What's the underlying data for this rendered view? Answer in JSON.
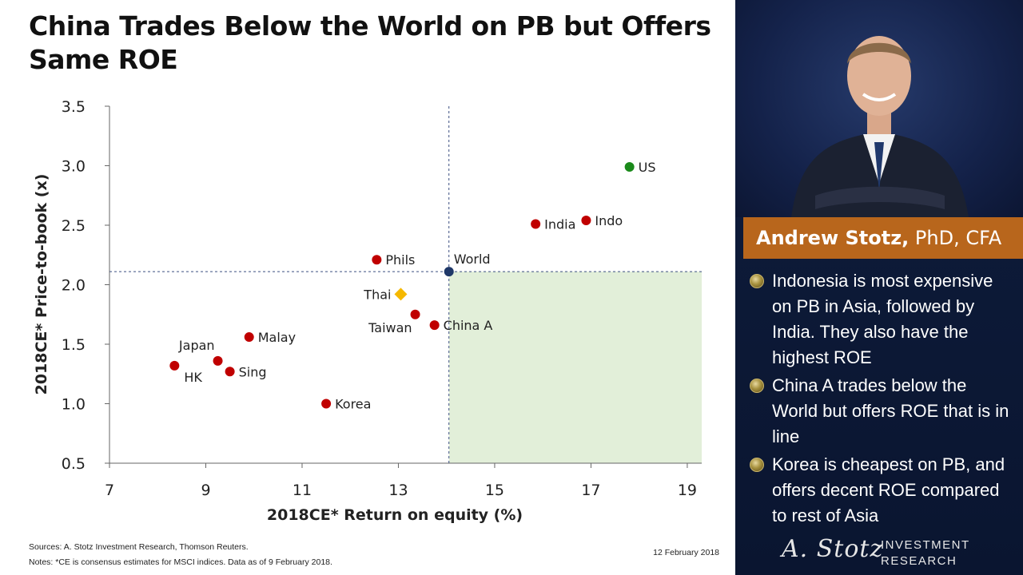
{
  "title": "China Trades Below the World on PB but Offers Same ROE",
  "chart_data": {
    "type": "scatter",
    "xlabel": "2018CE* Return on equity (%)",
    "ylabel": "2018CE* Price-to-book (x)",
    "xlim": [
      7,
      19.3
    ],
    "ylim": [
      0.5,
      3.5
    ],
    "xticks": [
      "7",
      "9",
      "11",
      "13",
      "15",
      "17",
      "19"
    ],
    "yticks": [
      "0.5",
      "1.0",
      "1.5",
      "2.0",
      "2.5",
      "3.0",
      "3.5"
    ],
    "reference_lines": {
      "x": 14.05,
      "y": 2.11
    },
    "highlight_region": {
      "x_from": 14.05,
      "x_to": 19.3,
      "y_from": 0.5,
      "y_to": 2.11
    },
    "points": [
      {
        "label": "US",
        "x": 17.8,
        "y": 2.99,
        "color": "#1a8a1a",
        "marker": "circle",
        "label_pos": "right"
      },
      {
        "label": "India",
        "x": 15.85,
        "y": 2.51,
        "color": "#c00000",
        "marker": "circle",
        "label_pos": "right"
      },
      {
        "label": "Indo",
        "x": 16.9,
        "y": 2.54,
        "color": "#c00000",
        "marker": "circle",
        "label_pos": "right"
      },
      {
        "label": "Phils",
        "x": 12.55,
        "y": 2.21,
        "color": "#c00000",
        "marker": "circle",
        "label_pos": "right"
      },
      {
        "label": "World",
        "x": 14.05,
        "y": 2.11,
        "color": "#1f3868",
        "marker": "circle",
        "label_pos": "above-right"
      },
      {
        "label": "Thai",
        "x": 13.05,
        "y": 1.92,
        "color": "#f5b800",
        "marker": "diamond",
        "label_pos": "left"
      },
      {
        "label": "Taiwan",
        "x": 13.35,
        "y": 1.75,
        "color": "#c00000",
        "marker": "circle",
        "label_pos": "below-left"
      },
      {
        "label": "China A",
        "x": 13.75,
        "y": 1.66,
        "color": "#c00000",
        "marker": "circle",
        "label_pos": "right"
      },
      {
        "label": "Malay",
        "x": 9.9,
        "y": 1.56,
        "color": "#c00000",
        "marker": "circle",
        "label_pos": "right"
      },
      {
        "label": "Japan",
        "x": 9.25,
        "y": 1.36,
        "color": "#c00000",
        "marker": "circle",
        "label_pos": "above-left"
      },
      {
        "label": "HK",
        "x": 8.35,
        "y": 1.32,
        "color": "#c00000",
        "marker": "circle",
        "label_pos": "below-right"
      },
      {
        "label": "Sing",
        "x": 9.5,
        "y": 1.27,
        "color": "#c00000",
        "marker": "circle",
        "label_pos": "right"
      },
      {
        "label": "Korea",
        "x": 11.5,
        "y": 1.0,
        "color": "#c00000",
        "marker": "circle",
        "label_pos": "right"
      }
    ]
  },
  "footer": {
    "sources": "Sources: A. Stotz Investment Research, Thomson Reuters.",
    "notes": "Notes: *CE  is consensus estimates for MSCI indices. Data as of 9 February 2018.",
    "date": "12 February 2018"
  },
  "sidebar": {
    "name": "Andrew Stotz,",
    "credentials": " PhD, CFA",
    "bullets": [
      "Indonesia is most expensive on PB in Asia, followed by India. They also have the highest ROE",
      "China A trades below the World but offers ROE that is in line",
      "Korea is cheapest on PB, and offers decent ROE compared to rest of Asia"
    ],
    "logo_signature": "A. Stotz",
    "logo_line1": "INVESTMENT",
    "logo_line2": "RESEARCH"
  },
  "colors": {
    "asia": "#c00000",
    "us": "#1a8a1a",
    "world": "#1f3868",
    "thai": "#f5b800",
    "highlight": "#e2efd9",
    "panel": "#0d1a38",
    "name_bar": "#b8661c"
  }
}
